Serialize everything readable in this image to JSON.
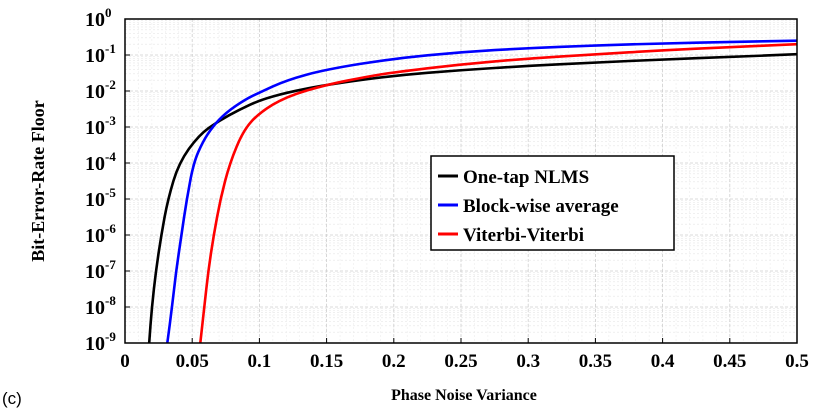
{
  "panel_label": "(c)",
  "chart_data": {
    "type": "line",
    "title": "",
    "xlabel": "Phase Noise Variance",
    "ylabel": "Bit-Error-Rate Floor",
    "xlim": [
      0,
      0.5
    ],
    "ylim": [
      1e-09,
      1
    ],
    "yscale": "log",
    "grid": true,
    "minor_grid": true,
    "legend_position": "center-right",
    "x_tick_labels": [
      "0",
      "0.05",
      "0.1",
      "0.15",
      "0.2",
      "0.25",
      "0.3",
      "0.35",
      "0.4",
      "0.45",
      "0.5"
    ],
    "y_tick_labels": [
      {
        "base": "10",
        "exp": "-9"
      },
      {
        "base": "10",
        "exp": "-8"
      },
      {
        "base": "10",
        "exp": "-7"
      },
      {
        "base": "10",
        "exp": "-6"
      },
      {
        "base": "10",
        "exp": "-5"
      },
      {
        "base": "10",
        "exp": "-4"
      },
      {
        "base": "10",
        "exp": "-3"
      },
      {
        "base": "10",
        "exp": "-2"
      },
      {
        "base": "10",
        "exp": "-1"
      },
      {
        "base": "10",
        "exp": "0"
      }
    ],
    "series": [
      {
        "name": "One-tap NLMS",
        "color": "#000000",
        "points": [
          [
            0.018,
            1e-09
          ],
          [
            0.02,
            1e-08
          ],
          [
            0.023,
            1e-07
          ],
          [
            0.027,
            1e-06
          ],
          [
            0.032,
            1e-05
          ],
          [
            0.04,
            0.0001
          ],
          [
            0.055,
            0.0006
          ],
          [
            0.07,
            0.0015
          ],
          [
            0.085,
            0.003
          ],
          [
            0.1,
            0.0055
          ],
          [
            0.12,
            0.009
          ],
          [
            0.15,
            0.015
          ],
          [
            0.2,
            0.027
          ],
          [
            0.25,
            0.038
          ],
          [
            0.3,
            0.05
          ],
          [
            0.35,
            0.062
          ],
          [
            0.4,
            0.075
          ],
          [
            0.45,
            0.088
          ],
          [
            0.5,
            0.105
          ]
        ]
      },
      {
        "name": "Block-wise average",
        "color": "#0000ff",
        "points": [
          [
            0.0315,
            1e-09
          ],
          [
            0.035,
            1e-08
          ],
          [
            0.038,
            1e-07
          ],
          [
            0.042,
            1e-06
          ],
          [
            0.046,
            1e-05
          ],
          [
            0.051,
            0.0001
          ],
          [
            0.058,
            0.0004
          ],
          [
            0.065,
            0.001
          ],
          [
            0.075,
            0.0025
          ],
          [
            0.09,
            0.006
          ],
          [
            0.1,
            0.009
          ],
          [
            0.12,
            0.02
          ],
          [
            0.15,
            0.04
          ],
          [
            0.2,
            0.08
          ],
          [
            0.25,
            0.12
          ],
          [
            0.3,
            0.155
          ],
          [
            0.35,
            0.185
          ],
          [
            0.4,
            0.21
          ],
          [
            0.45,
            0.23
          ],
          [
            0.5,
            0.25
          ]
        ]
      },
      {
        "name": "Viterbi-Viterbi",
        "color": "#ff0000",
        "points": [
          [
            0.056,
            1e-09
          ],
          [
            0.059,
            1e-08
          ],
          [
            0.062,
            1e-07
          ],
          [
            0.066,
            1e-06
          ],
          [
            0.071,
            1e-05
          ],
          [
            0.078,
            0.0001
          ],
          [
            0.088,
            0.0008
          ],
          [
            0.1,
            0.0025
          ],
          [
            0.12,
            0.007
          ],
          [
            0.15,
            0.015
          ],
          [
            0.18,
            0.025
          ],
          [
            0.2,
            0.033
          ],
          [
            0.25,
            0.055
          ],
          [
            0.3,
            0.08
          ],
          [
            0.35,
            0.105
          ],
          [
            0.4,
            0.135
          ],
          [
            0.45,
            0.165
          ],
          [
            0.5,
            0.2
          ]
        ]
      }
    ]
  }
}
